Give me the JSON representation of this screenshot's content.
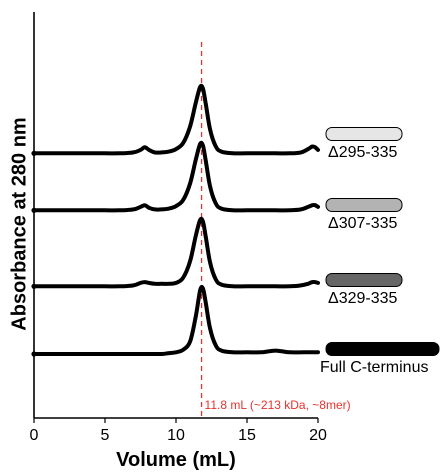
{
  "chart_data": {
    "type": "line",
    "xlabel": "Volume (mL)",
    "ylabel": "Absorbance at 280 nm",
    "xlim": [
      0,
      20
    ],
    "xticks": [
      0,
      5,
      10,
      15,
      20
    ],
    "reference_line": {
      "x": 11.8,
      "label": "11.8 mL (~213 kDa, ~8mer)",
      "color": "#e8322e"
    },
    "series": [
      {
        "name": "Δ295-335",
        "color": "#e6e6e6",
        "x": [
          0,
          1,
          2,
          3,
          4,
          5,
          6,
          7,
          7.5,
          7.8,
          8.1,
          8.5,
          9,
          9.5,
          10,
          10.5,
          11,
          11.4,
          11.7,
          11.9,
          12.1,
          12.4,
          12.8,
          13.2,
          14,
          15,
          16,
          17,
          18,
          18.8,
          19.3,
          19.6,
          19.8,
          20
        ],
        "y": [
          0.02,
          0.02,
          0.02,
          0.02,
          0.02,
          0.02,
          0.02,
          0.03,
          0.06,
          0.09,
          0.06,
          0.03,
          0.03,
          0.04,
          0.07,
          0.14,
          0.34,
          0.62,
          0.8,
          0.78,
          0.6,
          0.3,
          0.1,
          0.04,
          0.02,
          0.02,
          0.02,
          0.02,
          0.02,
          0.03,
          0.07,
          0.1,
          0.09,
          0.06
        ]
      },
      {
        "name": "Δ307-335",
        "color": "#b3b3b3",
        "x": [
          0,
          1,
          2,
          3,
          4,
          5,
          6,
          7,
          7.5,
          7.8,
          8.1,
          8.5,
          9,
          9.5,
          10,
          10.5,
          11,
          11.4,
          11.7,
          11.9,
          12.1,
          12.4,
          12.8,
          13.2,
          14,
          15,
          16,
          17,
          18,
          18.8,
          19.3,
          19.6,
          19.8,
          20
        ],
        "y": [
          0.02,
          0.02,
          0.02,
          0.02,
          0.02,
          0.02,
          0.02,
          0.03,
          0.06,
          0.08,
          0.05,
          0.03,
          0.03,
          0.04,
          0.07,
          0.14,
          0.34,
          0.62,
          0.8,
          0.78,
          0.6,
          0.3,
          0.1,
          0.04,
          0.02,
          0.02,
          0.02,
          0.02,
          0.02,
          0.03,
          0.06,
          0.08,
          0.08,
          0.06
        ]
      },
      {
        "name": "Δ329-335",
        "color": "#666666",
        "x": [
          0,
          1,
          2,
          3,
          4,
          5,
          6,
          7,
          7.5,
          7.8,
          8.1,
          8.5,
          9,
          9.5,
          10,
          10.5,
          11,
          11.4,
          11.7,
          11.9,
          12.1,
          12.4,
          12.8,
          13.2,
          14,
          15,
          16,
          17,
          18,
          18.8,
          19.3,
          19.6,
          19.8,
          20
        ],
        "y": [
          0.02,
          0.02,
          0.02,
          0.02,
          0.02,
          0.02,
          0.02,
          0.03,
          0.06,
          0.07,
          0.06,
          0.05,
          0.05,
          0.05,
          0.06,
          0.12,
          0.32,
          0.62,
          0.8,
          0.78,
          0.6,
          0.3,
          0.1,
          0.04,
          0.02,
          0.02,
          0.02,
          0.02,
          0.02,
          0.03,
          0.05,
          0.07,
          0.07,
          0.06
        ]
      },
      {
        "name": "Full C-terminus",
        "color": "#000000",
        "x": [
          0,
          1,
          2,
          3,
          4,
          5,
          6,
          7,
          8,
          9,
          9.5,
          10,
          10.5,
          11,
          11.4,
          11.7,
          11.9,
          12.1,
          12.4,
          12.8,
          13.2,
          14,
          15,
          16,
          16.5,
          17,
          17.5,
          18,
          19,
          20
        ],
        "y": [
          0.0,
          0.0,
          0.0,
          0.0,
          0.0,
          0.0,
          0.0,
          0.0,
          0.0,
          0.0,
          0.01,
          0.02,
          0.05,
          0.15,
          0.45,
          0.75,
          0.77,
          0.6,
          0.3,
          0.1,
          0.04,
          0.02,
          0.02,
          0.02,
          0.03,
          0.04,
          0.03,
          0.02,
          0.02,
          0.02
        ]
      }
    ]
  }
}
